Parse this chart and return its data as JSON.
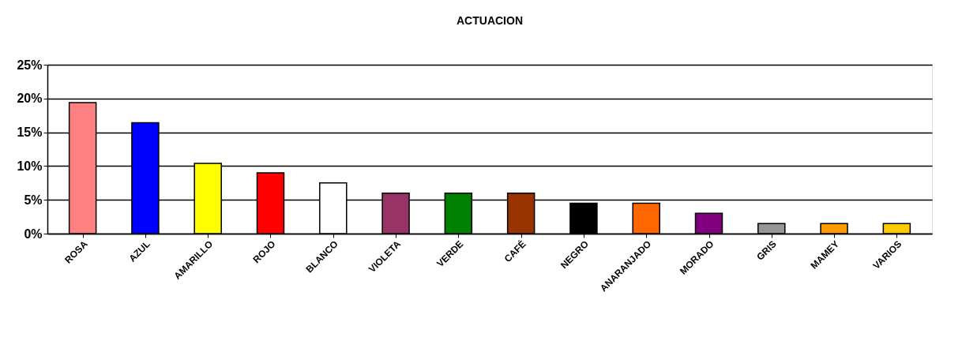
{
  "chart_data": {
    "type": "bar",
    "title": "ACTUACION",
    "categories": [
      "ROSA",
      "AZUL",
      "AMARILLO",
      "ROJO",
      "BLANCO",
      "VIOLETA",
      "VERDE",
      "CAFÉ",
      "NEGRO",
      "ANARANJADO",
      "MORADO",
      "GRIS",
      "MAMEY",
      "VARIOS"
    ],
    "values": [
      19.4,
      16.4,
      10.4,
      9.0,
      7.5,
      6.0,
      6.0,
      6.0,
      4.5,
      4.5,
      3.0,
      1.5,
      1.5,
      1.5
    ],
    "colors": [
      "#ff8080",
      "#0000ff",
      "#ffff00",
      "#ff0000",
      "#ffffff",
      "#993366",
      "#008000",
      "#993300",
      "#000000",
      "#ff6600",
      "#800080",
      "#969696",
      "#ff9900",
      "#ffcc00"
    ],
    "ylim": [
      0,
      25
    ],
    "yticks": [
      {
        "value": 0,
        "label": "0%"
      },
      {
        "value": 5,
        "label": "5%"
      },
      {
        "value": 10,
        "label": "10%"
      },
      {
        "value": 15,
        "label": "15%"
      },
      {
        "value": 20,
        "label": "20%"
      },
      {
        "value": 25,
        "label": "25%"
      }
    ],
    "grid": "y"
  }
}
